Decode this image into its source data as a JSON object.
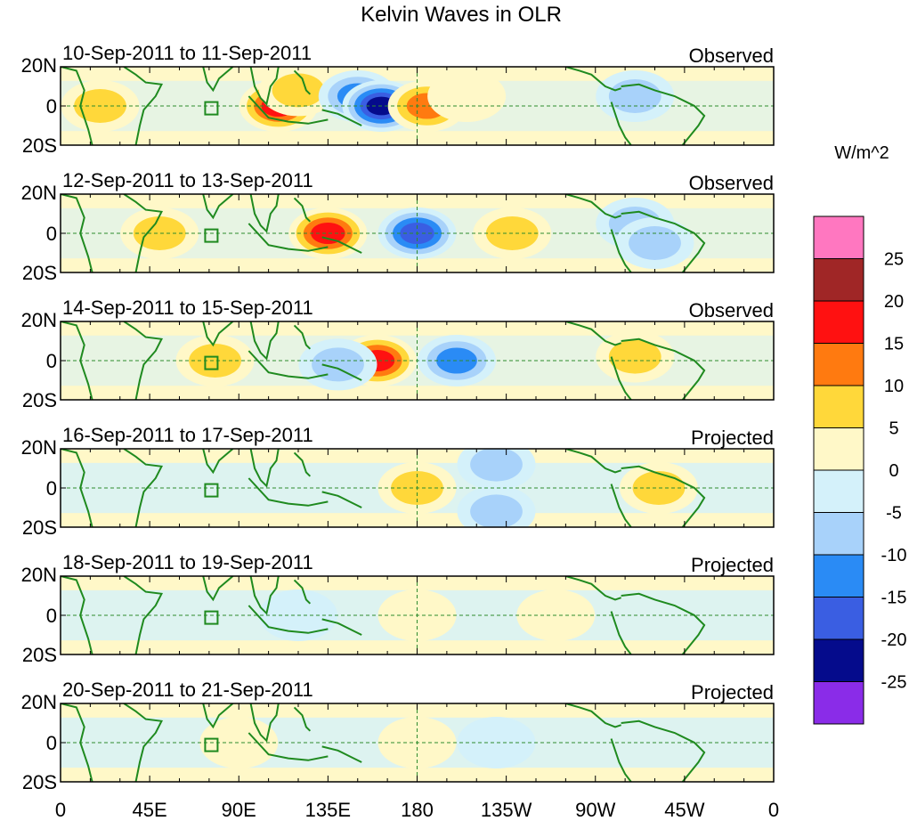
{
  "chart_data": {
    "type": "heatmap",
    "title": "Kelvin Waves in OLR",
    "units_label": "W/m^2",
    "x_ticks": [
      "0",
      "45E",
      "90E",
      "135E",
      "180",
      "135W",
      "90W",
      "45W",
      "0"
    ],
    "y_ticks": [
      "20N",
      "0",
      "20S"
    ],
    "colorbar": {
      "levels": [
        "25",
        "20",
        "15",
        "10",
        "5",
        "0",
        "-5",
        "-10",
        "-15",
        "-20",
        "-25"
      ],
      "colors": [
        "#ff77c0",
        "#a02626",
        "#ff1111",
        "#ff7a10",
        "#ffd83a",
        "#fff8c8",
        "#d4f1fa",
        "#a8d2fa",
        "#2a8bf5",
        "#3a5ee2",
        "#050b8c",
        "#8a2ce8"
      ]
    },
    "panels": [
      {
        "dates": "10-Sep-2011 to 11-Sep-2011",
        "status": "Observed",
        "anomalies": [
          {
            "lon": 20,
            "lat": 0,
            "value": 10
          },
          {
            "lon": 110,
            "lat": 0,
            "value": 20
          },
          {
            "lon": 120,
            "lat": 8,
            "value": 10
          },
          {
            "lon": 150,
            "lat": 5,
            "value": -15
          },
          {
            "lon": 162,
            "lat": 0,
            "value": -25
          },
          {
            "lon": 185,
            "lat": 0,
            "value": 15
          },
          {
            "lon": 205,
            "lat": 5,
            "value": 5
          },
          {
            "lon": 290,
            "lat": 5,
            "value": -10
          }
        ]
      },
      {
        "dates": "12-Sep-2011 to 13-Sep-2011",
        "status": "Observed",
        "anomalies": [
          {
            "lon": 50,
            "lat": 0,
            "value": 10
          },
          {
            "lon": 135,
            "lat": 0,
            "value": 20
          },
          {
            "lon": 180,
            "lat": 0,
            "value": -20
          },
          {
            "lon": 228,
            "lat": 0,
            "value": 10
          },
          {
            "lon": 290,
            "lat": 5,
            "value": -10
          },
          {
            "lon": 300,
            "lat": -5,
            "value": -10
          }
        ]
      },
      {
        "dates": "14-Sep-2011 to 15-Sep-2011",
        "status": "Observed",
        "anomalies": [
          {
            "lon": 78,
            "lat": 0,
            "value": 10
          },
          {
            "lon": 160,
            "lat": 0,
            "value": 20
          },
          {
            "lon": 200,
            "lat": 0,
            "value": -15
          },
          {
            "lon": 140,
            "lat": -2,
            "value": -10
          },
          {
            "lon": 290,
            "lat": 2,
            "value": 10
          }
        ]
      },
      {
        "dates": "16-Sep-2011 to 17-Sep-2011",
        "status": "Projected",
        "anomalies": [
          {
            "lon": 180,
            "lat": 0,
            "value": 10
          },
          {
            "lon": 220,
            "lat": 12,
            "value": -10
          },
          {
            "lon": 220,
            "lat": -12,
            "value": -10
          },
          {
            "lon": 302,
            "lat": 0,
            "value": 10
          }
        ]
      },
      {
        "dates": "18-Sep-2011 to 19-Sep-2011",
        "status": "Projected",
        "anomalies": [
          {
            "lon": 180,
            "lat": 0,
            "value": 5
          },
          {
            "lon": 250,
            "lat": 0,
            "value": 5
          },
          {
            "lon": 120,
            "lat": 0,
            "value": -5
          }
        ]
      },
      {
        "dates": "20-Sep-2011 to 21-Sep-2011",
        "status": "Projected",
        "anomalies": [
          {
            "lon": 90,
            "lat": 0,
            "value": 5
          },
          {
            "lon": 180,
            "lat": 0,
            "value": 5
          },
          {
            "lon": 220,
            "lat": 0,
            "value": -5
          }
        ]
      }
    ]
  }
}
